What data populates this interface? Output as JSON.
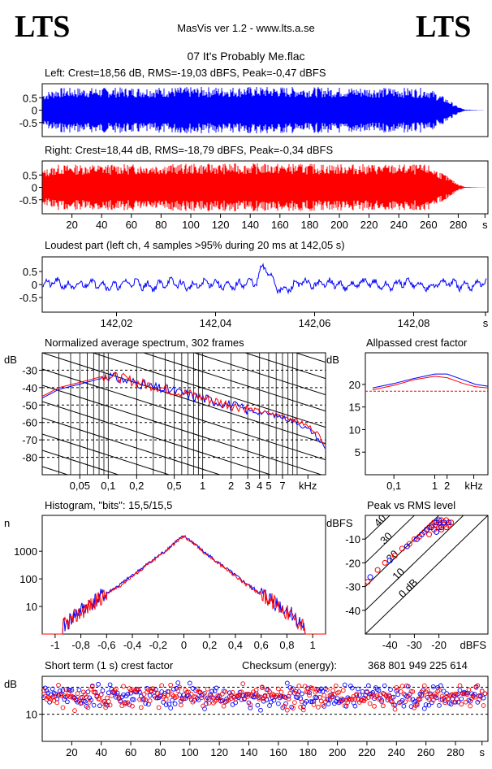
{
  "header": {
    "logo_left": "LTS",
    "logo_right": "LTS",
    "app_title": "MasVis ver 1.2 - www.lts.a.se",
    "file_title": "07 It's Probably Me.flac"
  },
  "colors": {
    "left": "#0000ff",
    "right": "#ff0000",
    "grid": "#000000"
  },
  "chart_data": [
    {
      "id": "left-waveform",
      "type": "area",
      "title": "Left: Crest=18,56 dB, RMS=-19,03 dBFS, Peak=-0,47 dBFS",
      "y_ticks": [
        "0.5",
        "0",
        "-0.5"
      ],
      "ylim": [
        -1,
        1
      ],
      "xlim": [
        0,
        300
      ],
      "envelope": {
        "x": [
          0,
          10,
          140,
          260,
          272,
          280,
          285,
          300
        ],
        "amp": [
          0.7,
          0.9,
          0.95,
          0.9,
          0.5,
          0.15,
          0.02,
          0.0
        ]
      }
    },
    {
      "id": "right-waveform",
      "type": "area",
      "title": "Right: Crest=18,44 dB, RMS=-18,79 dBFS, Peak=-0,34 dBFS",
      "y_ticks": [
        "0.5",
        "0",
        "-0.5"
      ],
      "ylim": [
        -1,
        1
      ],
      "xlim": [
        0,
        300
      ],
      "x_ticks": [
        "20",
        "40",
        "60",
        "80",
        "100",
        "120",
        "140",
        "160",
        "180",
        "200",
        "220",
        "240",
        "260",
        "280",
        "s"
      ],
      "envelope": {
        "x": [
          0,
          10,
          140,
          260,
          272,
          280,
          285,
          300
        ],
        "amp": [
          0.7,
          0.92,
          0.97,
          0.92,
          0.5,
          0.15,
          0.02,
          0.0
        ]
      }
    },
    {
      "id": "loudest-part",
      "type": "line",
      "title": "Loudest part (left  ch, 4 samples >95% during 20 ms at 142,05 s)",
      "y_ticks": [
        "0.5",
        "0",
        "-0.5"
      ],
      "ylim": [
        -1,
        1
      ],
      "x_ticks": [
        "142,02",
        "142,04",
        "142,06",
        "142,08",
        "s"
      ],
      "xlim": [
        142.005,
        142.095
      ]
    },
    {
      "id": "spectrum",
      "type": "line",
      "title": "Normalized average spectrum, 302 frames",
      "ylabel": "dB",
      "y_ticks": [
        "-30",
        "-40",
        "-50",
        "-60",
        "-70",
        "-80"
      ],
      "x_ticks": [
        "0,05",
        "0,1",
        "0,2",
        "0,5",
        "1",
        "2",
        "3",
        "4",
        "5",
        "7",
        "kHz"
      ],
      "ylim": [
        -90,
        -20
      ],
      "xlim_khz": [
        0.02,
        20
      ],
      "series": [
        {
          "color": "blue",
          "x_khz": [
            0.02,
            0.03,
            0.05,
            0.08,
            0.1,
            0.15,
            0.2,
            0.3,
            0.5,
            0.8,
            1,
            2,
            3,
            5,
            7,
            10,
            15,
            20
          ],
          "values": [
            -46,
            -41,
            -38,
            -35,
            -33,
            -36,
            -37,
            -40,
            -42,
            -45,
            -46,
            -50,
            -53,
            -55,
            -57,
            -60,
            -66,
            -75
          ]
        },
        {
          "color": "red",
          "x_khz": [
            0.02,
            0.03,
            0.05,
            0.08,
            0.1,
            0.15,
            0.2,
            0.3,
            0.5,
            0.8,
            1,
            2,
            3,
            5,
            7,
            10,
            15,
            20
          ],
          "values": [
            -45,
            -40,
            -37,
            -34,
            -33,
            -35,
            -37,
            -39,
            -42,
            -44,
            -46,
            -50,
            -52,
            -55,
            -56,
            -59,
            -64,
            -72
          ]
        }
      ]
    },
    {
      "id": "allpassed-crest",
      "type": "line",
      "title": "Allpassed crest factor",
      "ylabel": "dB",
      "y_ticks": [
        "20",
        "15",
        "10",
        "5"
      ],
      "x_ticks": [
        "0,1",
        "1",
        "2",
        "kHz"
      ],
      "ylim": [
        0,
        27
      ],
      "reference_line": 18.5,
      "series": [
        {
          "color": "blue",
          "x_khz": [
            0.03,
            0.1,
            0.3,
            1,
            2,
            5,
            10,
            20
          ],
          "values": [
            19.2,
            20.2,
            21.3,
            22.3,
            22.3,
            21,
            20,
            19.6
          ]
        },
        {
          "color": "red",
          "x_khz": [
            0.03,
            0.1,
            0.3,
            1,
            2,
            5,
            10,
            20
          ],
          "values": [
            18.8,
            19.8,
            21,
            21.8,
            21.5,
            20.2,
            19.5,
            19.2
          ]
        }
      ]
    },
    {
      "id": "histogram",
      "type": "line",
      "title": "Histogram, \"bits\": 15,5/15,5",
      "ylabel": "n",
      "y_ticks": [
        "1000",
        "100",
        "10"
      ],
      "x_ticks": [
        "-1",
        "-0,8",
        "-0,6",
        "-0,4",
        "-0,2",
        "0",
        "0,2",
        "0,4",
        "0,6",
        "0,8",
        "1"
      ],
      "xlim": [
        -1.1,
        1.1
      ],
      "series": [
        {
          "color": "blue",
          "x": [
            -0.92,
            -0.85,
            -0.7,
            -0.5,
            -0.3,
            -0.15,
            -0.05,
            0,
            0.05,
            0.15,
            0.3,
            0.5,
            0.7,
            0.85,
            0.92
          ],
          "values": [
            2,
            5,
            15,
            60,
            300,
            1000,
            2500,
            3500,
            2500,
            1000,
            300,
            60,
            15,
            5,
            2
          ]
        },
        {
          "color": "red",
          "x": [
            -0.93,
            -0.85,
            -0.7,
            -0.5,
            -0.3,
            -0.15,
            -0.05,
            0,
            0.05,
            0.15,
            0.3,
            0.5,
            0.7,
            0.85,
            0.93
          ],
          "values": [
            2,
            4,
            14,
            55,
            280,
            950,
            2400,
            3400,
            2400,
            950,
            280,
            55,
            14,
            4,
            2
          ]
        }
      ]
    },
    {
      "id": "peak-vs-rms",
      "type": "scatter",
      "title": "Peak vs RMS level",
      "ylabel": "dBFS",
      "xlabel": "dBFS",
      "y_ticks": [
        "-10",
        "-20",
        "-30",
        "-40"
      ],
      "x_ticks": [
        "-40",
        "-30",
        "-20"
      ],
      "diag_labels": [
        "40",
        "30",
        "20",
        "10",
        "0 dB"
      ],
      "xlim": [
        -50,
        0
      ],
      "ylim": [
        -50,
        0
      ],
      "series": [
        {
          "color": "red",
          "x": [
            -49,
            -45,
            -42,
            -38,
            -35,
            -32,
            -30,
            -28,
            -26,
            -25,
            -24,
            -23,
            -22,
            -21,
            -20,
            -19,
            -18,
            -17,
            -16,
            -15,
            -22,
            -20,
            -18,
            -24,
            -19,
            -17
          ],
          "y": [
            -28,
            -23,
            -20,
            -17,
            -14,
            -12,
            -10,
            -9,
            -7,
            -6,
            -5,
            -4,
            -3,
            -4,
            -3,
            -2,
            -3,
            -2,
            -4,
            -3,
            -6,
            -5,
            -4,
            -8,
            -6,
            -5
          ]
        },
        {
          "color": "blue",
          "x": [
            -48,
            -40,
            -33,
            -29,
            -27,
            -25,
            -23,
            -21,
            -20,
            -18,
            -16,
            -21,
            -19
          ],
          "y": [
            -26,
            -19,
            -13,
            -10,
            -8,
            -6,
            -5,
            -3,
            -2,
            -3,
            -3,
            -7,
            -5
          ]
        }
      ]
    },
    {
      "id": "short-term-crest",
      "type": "scatter",
      "title": "Short term (1 s) crest factor",
      "checksum_label": "Checksum (energy):",
      "checksum_value": "368 801 949 225 614",
      "ylabel": "dB",
      "y_ticks": [
        "10"
      ],
      "x_ticks": [
        "20",
        "40",
        "60",
        "80",
        "100",
        "120",
        "140",
        "160",
        "180",
        "200",
        "220",
        "240",
        "260",
        "280",
        "s"
      ],
      "xlim": [
        0,
        302
      ],
      "ylim": [
        0,
        24
      ],
      "reference_lines": [
        10,
        20
      ],
      "mean": 16.5,
      "spread": 2.8
    }
  ]
}
